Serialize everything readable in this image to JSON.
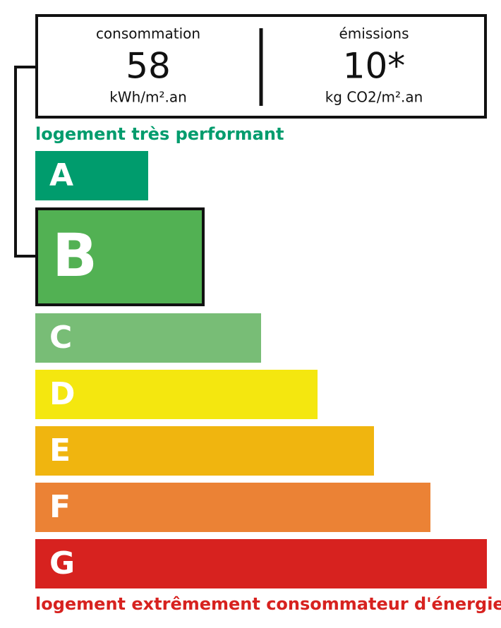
{
  "header": {
    "consumption": {
      "label": "consommation",
      "value": "58",
      "unit": "kWh/m².an"
    },
    "emissions": {
      "label": "émissions",
      "value": "10*",
      "unit": "kg CO2/m².an"
    }
  },
  "top_label": "logement très performant",
  "bottom_label": "logement extrêmement consommateur d'énergie",
  "classes": [
    {
      "letter": "A",
      "color": "#009c6d"
    },
    {
      "letter": "B",
      "color": "#52b153"
    },
    {
      "letter": "C",
      "color": "#78bd76"
    },
    {
      "letter": "D",
      "color": "#f4e70f"
    },
    {
      "letter": "E",
      "color": "#f0b50f"
    },
    {
      "letter": "F",
      "color": "#eb8235"
    },
    {
      "letter": "G",
      "color": "#d7221f"
    }
  ]
}
